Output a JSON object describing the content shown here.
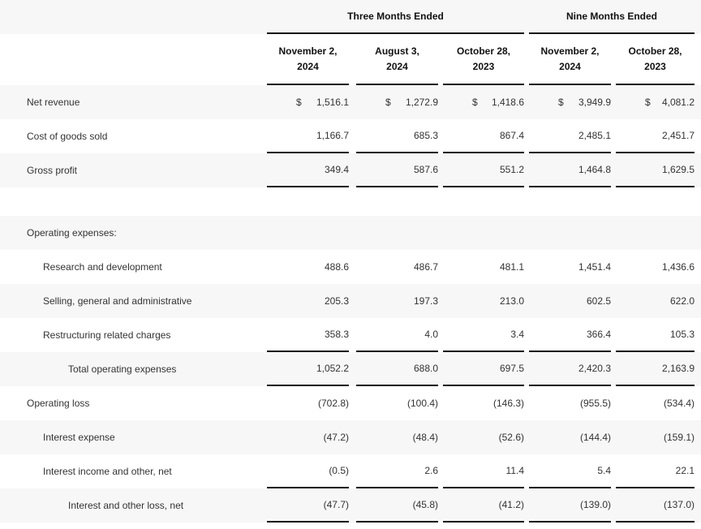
{
  "header": {
    "group1": "Three Months Ended",
    "group2": "Nine Months Ended",
    "columns": [
      "November 2,\n2024",
      "August 3,\n2024",
      "October 28,\n2023",
      "November 2,\n2024",
      "October 28,\n2023"
    ]
  },
  "currency_symbol": "$",
  "rows": [
    {
      "label": "Net revenue",
      "values": [
        "1,516.1",
        "1,272.9",
        "1,418.6",
        "3,949.9",
        "4,081.2"
      ]
    },
    {
      "label": "Cost of goods sold",
      "values": [
        "1,166.7",
        "685.3",
        "867.4",
        "2,485.1",
        "2,451.7"
      ]
    },
    {
      "label": "Gross profit",
      "values": [
        "349.4",
        "587.6",
        "551.2",
        "1,464.8",
        "1,629.5"
      ]
    },
    {
      "label": "Operating expenses:",
      "values": []
    },
    {
      "label": "Research and development",
      "values": [
        "488.6",
        "486.7",
        "481.1",
        "1,451.4",
        "1,436.6"
      ]
    },
    {
      "label": "Selling, general and administrative",
      "values": [
        "205.3",
        "197.3",
        "213.0",
        "602.5",
        "622.0"
      ]
    },
    {
      "label": "Restructuring related charges",
      "values": [
        "358.3",
        "4.0",
        "3.4",
        "366.4",
        "105.3"
      ]
    },
    {
      "label": "Total operating expenses",
      "values": [
        "1,052.2",
        "688.0",
        "697.5",
        "2,420.3",
        "2,163.9"
      ]
    },
    {
      "label": "Operating loss",
      "values": [
        "(702.8)",
        "(100.4)",
        "(146.3)",
        "(955.5)",
        "(534.4)"
      ]
    },
    {
      "label": "Interest expense",
      "values": [
        "(47.2)",
        "(48.4)",
        "(52.6)",
        "(144.4)",
        "(159.1)"
      ]
    },
    {
      "label": "Interest income and other, net",
      "values": [
        "(0.5)",
        "2.6",
        "11.4",
        "5.4",
        "22.1"
      ]
    },
    {
      "label": "Interest and other loss, net",
      "values": [
        "(47.7)",
        "(45.8)",
        "(41.2)",
        "(139.0)",
        "(137.0)"
      ]
    }
  ]
}
